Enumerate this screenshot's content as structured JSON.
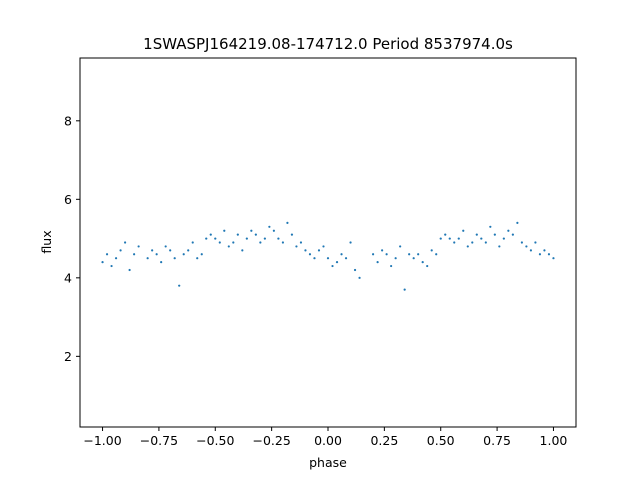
{
  "chart_data": {
    "type": "scatter",
    "title": "1SWASPJ164219.08-174712.0 Period 8537974.0s",
    "xlabel": "phase",
    "ylabel": "flux",
    "xlim": [
      -1.1,
      1.1
    ],
    "ylim": [
      0.2,
      9.6
    ],
    "xticks": [
      -1.0,
      -0.75,
      -0.5,
      -0.25,
      0.0,
      0.25,
      0.5,
      0.75,
      1.0
    ],
    "xtick_labels": [
      "−1.00",
      "−0.75",
      "−0.50",
      "−0.25",
      "0.00",
      "0.25",
      "0.50",
      "0.75",
      "1.00"
    ],
    "yticks": [
      2,
      4,
      6,
      8
    ],
    "ytick_labels": [
      "2",
      "4",
      "6",
      "8"
    ],
    "grid": false,
    "marker_color": "#1f77b4",
    "series": [
      {
        "x": [
          -1.0,
          -0.98,
          -0.96,
          -0.94,
          -0.92,
          -0.9,
          -0.88,
          -0.86,
          -0.84,
          -0.8,
          -0.78,
          -0.76,
          -0.74,
          -0.72,
          -0.7,
          -0.68,
          -0.66,
          -0.64,
          -0.62,
          -0.6,
          -0.58,
          -0.56,
          -0.54,
          -0.52,
          -0.5,
          -0.48,
          -0.46,
          -0.44,
          -0.42,
          -0.4,
          -0.38,
          -0.36,
          -0.34,
          -0.32,
          -0.3,
          -0.28,
          -0.26,
          -0.24,
          -0.22,
          -0.2,
          -0.18,
          -0.16,
          -0.14,
          -0.12,
          -0.1,
          -0.08,
          -0.06,
          -0.04,
          -0.02,
          0.0,
          0.02,
          0.04,
          0.06,
          0.08,
          0.1,
          0.12,
          0.14,
          0.2,
          0.22,
          0.24,
          0.26,
          0.28,
          0.3,
          0.32,
          0.34,
          0.36,
          0.38,
          0.4,
          0.42,
          0.44,
          0.46,
          0.48,
          0.5,
          0.52,
          0.54,
          0.56,
          0.58,
          0.6,
          0.62,
          0.64,
          0.66,
          0.68,
          0.7,
          0.72,
          0.74,
          0.76,
          0.78,
          0.8,
          0.82,
          0.84,
          0.86,
          0.88,
          0.9,
          0.92,
          0.94,
          0.96,
          0.98,
          1.0
        ],
        "y": [
          4.4,
          4.6,
          4.3,
          4.5,
          4.7,
          4.9,
          4.2,
          4.6,
          4.8,
          4.5,
          4.7,
          4.6,
          4.4,
          4.8,
          4.7,
          4.5,
          3.8,
          4.6,
          4.7,
          4.9,
          4.5,
          4.6,
          5.0,
          5.1,
          5.0,
          4.9,
          5.2,
          4.8,
          4.9,
          5.1,
          4.7,
          5.0,
          5.2,
          5.1,
          4.9,
          5.0,
          5.3,
          5.2,
          5.0,
          4.9,
          5.4,
          5.1,
          4.8,
          4.9,
          4.7,
          4.6,
          4.5,
          4.7,
          4.8,
          4.5,
          4.3,
          4.4,
          4.6,
          4.5,
          4.9,
          4.2,
          4.0,
          4.6,
          4.4,
          4.7,
          4.6,
          4.3,
          4.5,
          4.8,
          3.7,
          4.6,
          4.5,
          4.6,
          4.4,
          4.3,
          4.7,
          4.6,
          5.0,
          5.1,
          5.0,
          4.9,
          5.0,
          5.2,
          4.8,
          4.9,
          5.1,
          5.0,
          4.9,
          5.3,
          5.1,
          4.8,
          5.0,
          5.2,
          5.1,
          5.4,
          4.9,
          4.8,
          4.7,
          4.9,
          4.6,
          4.7,
          4.6,
          4.5
        ]
      }
    ]
  }
}
